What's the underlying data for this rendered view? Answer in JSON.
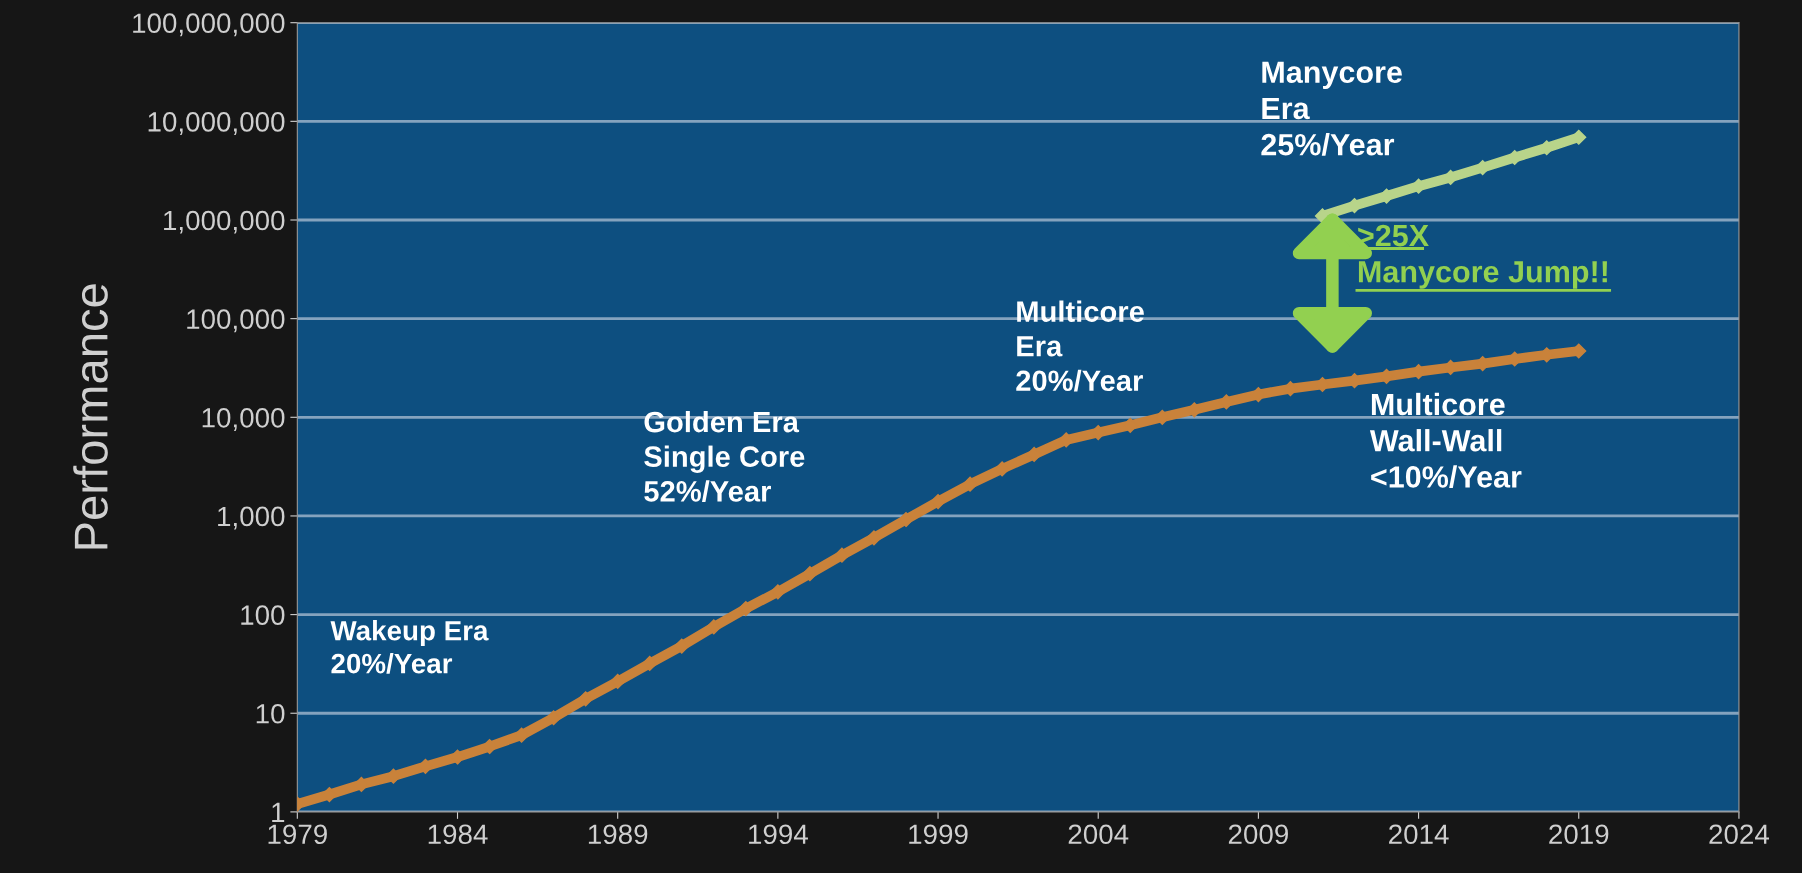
{
  "chart_data": {
    "type": "line",
    "ylabel": "Performance",
    "log": true,
    "grid": "y",
    "marker": "diamond",
    "line_style": "solid",
    "legend": false,
    "xlim": [
      1979,
      2024
    ],
    "xticks": [
      1979,
      1984,
      1989,
      1994,
      1999,
      2004,
      2009,
      2014,
      2019,
      2024
    ],
    "ylim": [
      1,
      100000000
    ],
    "yticks": [
      {
        "value": 1,
        "label": "1"
      },
      {
        "value": 10,
        "label": "10"
      },
      {
        "value": 100,
        "label": "100"
      },
      {
        "value": 1000,
        "label": "1,000"
      },
      {
        "value": 10000,
        "label": "10,000"
      },
      {
        "value": 100000,
        "label": "100,000"
      },
      {
        "value": 1000000,
        "label": "1,000,000"
      },
      {
        "value": 10000000,
        "label": "10,000,000"
      },
      {
        "value": 100000000,
        "label": "100,000,000"
      }
    ],
    "series": [
      {
        "color": "#c9823a",
        "x": [
          1979,
          1980,
          1981,
          1982,
          1983,
          1984,
          1985,
          1986,
          1987,
          1988,
          1989,
          1990,
          1991,
          1992,
          1993,
          1994,
          1995,
          1996,
          1997,
          1998,
          1999,
          2000,
          2001,
          2002,
          2003,
          2004,
          2005,
          2006,
          2007,
          2008,
          2009,
          2010,
          2011,
          2012,
          2013,
          2014,
          2015,
          2016,
          2017,
          2018,
          2019
        ],
        "values": [
          1.2,
          1.5,
          1.9,
          2.3,
          2.9,
          3.6,
          4.6,
          6,
          9,
          14,
          21,
          32,
          48,
          75,
          115,
          170,
          260,
          400,
          600,
          920,
          1400,
          2100,
          3000,
          4200,
          5900,
          7000,
          8300,
          10000,
          11900,
          14300,
          17000,
          19500,
          21500,
          23500,
          26000,
          29000,
          32000,
          35000,
          39000,
          43000,
          47000
        ]
      },
      {
        "color": "#b8d48a",
        "x": [
          2011,
          2012,
          2013,
          2014,
          2015,
          2016,
          2017,
          2018,
          2019
        ],
        "values": [
          1100000,
          1400000,
          1750000,
          2200000,
          2700000,
          3400000,
          4300000,
          5400000,
          6900000
        ]
      }
    ],
    "annotations": [
      "Wakeup Era\n20%/Year",
      "Golden Era\nSingle Core\n52%/Year",
      "Multicore\nEra\n20%/Year",
      "Manycore\nEra\n25%/Year",
      ">25X\nManycore Jump!!",
      "Multicore\nWall-Wall\n<10%/Year"
    ]
  }
}
